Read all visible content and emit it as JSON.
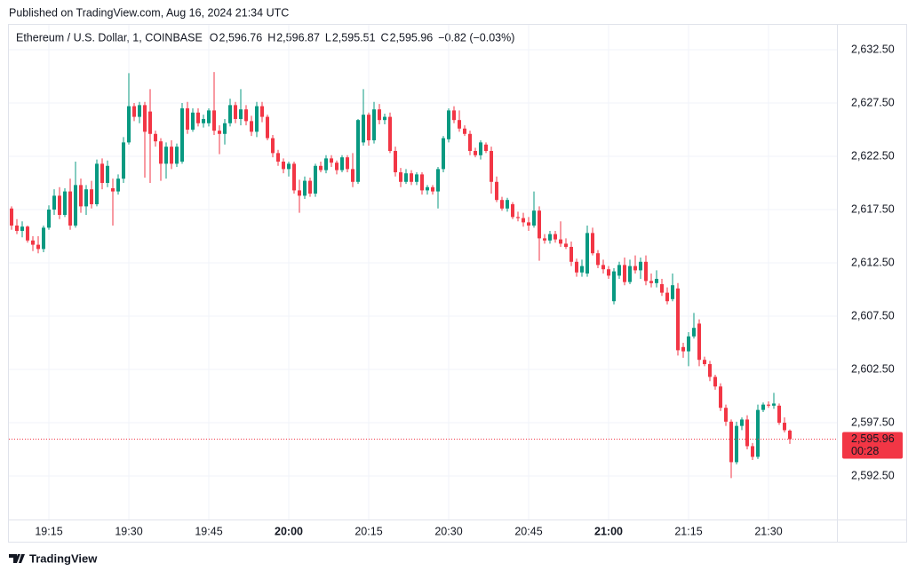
{
  "published": "Published on TradingView.com, Aug 16, 2024 21:34 UTC",
  "footer": "TradingView",
  "chart_data": {
    "type": "candlestick",
    "title": "Ethereum / U.S. Dollar, 1, COINBASE",
    "ohlc_legend": [
      {
        "label": "O",
        "value": "2,596.76"
      },
      {
        "label": "H",
        "value": "2,596.87"
      },
      {
        "label": "L",
        "value": "2,595.51"
      },
      {
        "label": "C",
        "value": "2,595.96"
      }
    ],
    "change": "−0.82 (−0.03%)",
    "up_color": "#089981",
    "down_color": "#f23645",
    "last_price": {
      "value": 2595.96,
      "label": "2,595.96"
    },
    "countdown": "00:28",
    "grid": true,
    "ylim": [
      2588.42,
      2634.83
    ],
    "yticks": [
      {
        "value": 2592.5,
        "label": "2,592.50"
      },
      {
        "value": 2597.5,
        "label": "2,597.50"
      },
      {
        "value": 2602.5,
        "label": "2,602.50"
      },
      {
        "value": 2607.5,
        "label": "2,607.50"
      },
      {
        "value": 2612.5,
        "label": "2,612.50"
      },
      {
        "value": 2617.5,
        "label": "2,617.50"
      },
      {
        "value": 2622.5,
        "label": "2,622.50"
      },
      {
        "value": 2627.5,
        "label": "2,627.50"
      },
      {
        "value": 2632.5,
        "label": "2,632.50"
      }
    ],
    "categories": [
      null,
      null,
      null,
      null,
      null,
      null,
      null,
      "19:15",
      null,
      null,
      null,
      null,
      null,
      null,
      null,
      null,
      null,
      null,
      null,
      null,
      null,
      null,
      "19:30",
      null,
      null,
      null,
      null,
      null,
      null,
      null,
      null,
      null,
      null,
      null,
      null,
      null,
      null,
      "19:45",
      null,
      null,
      null,
      null,
      null,
      null,
      null,
      null,
      null,
      null,
      null,
      null,
      null,
      null,
      "20:00",
      null,
      null,
      null,
      null,
      null,
      null,
      null,
      null,
      null,
      null,
      null,
      null,
      null,
      null,
      "20:15",
      null,
      null,
      null,
      null,
      null,
      null,
      null,
      null,
      null,
      null,
      null,
      null,
      null,
      null,
      "20:30",
      null,
      null,
      null,
      null,
      null,
      null,
      null,
      null,
      null,
      null,
      null,
      null,
      null,
      null,
      "20:45",
      null,
      null,
      null,
      null,
      null,
      null,
      null,
      null,
      null,
      null,
      null,
      null,
      null,
      null,
      "21:00",
      null,
      null,
      null,
      null,
      null,
      null,
      null,
      null,
      null,
      null,
      null,
      null,
      null,
      null,
      "21:15",
      null,
      null,
      null,
      null,
      null,
      null,
      null,
      null,
      null,
      null,
      null,
      null,
      null,
      null,
      "21:30",
      null,
      null,
      null,
      null
    ],
    "candles": [
      [
        2617.6,
        2617.8,
        2615.6,
        2616.0
      ],
      [
        2616.0,
        2616.6,
        2615.2,
        2615.5
      ],
      [
        2615.5,
        2616.4,
        2614.9,
        2615.9
      ],
      [
        2615.9,
        2616.0,
        2614.4,
        2614.6
      ],
      [
        2614.6,
        2615.0,
        2613.6,
        2614.2
      ],
      [
        2614.2,
        2615.0,
        2613.4,
        2613.8
      ],
      [
        2613.8,
        2616.0,
        2613.5,
        2615.8
      ],
      [
        2615.8,
        2617.9,
        2615.6,
        2617.5
      ],
      [
        2617.5,
        2619.4,
        2617.0,
        2618.8
      ],
      [
        2618.8,
        2619.6,
        2616.6,
        2617.0
      ],
      [
        2617.0,
        2619.5,
        2616.8,
        2619.2
      ],
      [
        2619.2,
        2620.4,
        2615.6,
        2616.0
      ],
      [
        2616.0,
        2622.0,
        2615.8,
        2619.8
      ],
      [
        2619.8,
        2620.4,
        2617.2,
        2617.8
      ],
      [
        2617.8,
        2619.8,
        2617.0,
        2619.4
      ],
      [
        2619.4,
        2620.2,
        2617.6,
        2618.0
      ],
      [
        2618.0,
        2622.2,
        2617.8,
        2621.8
      ],
      [
        2621.8,
        2622.3,
        2619.4,
        2620.0
      ],
      [
        2620.0,
        2622.1,
        2619.6,
        2621.6
      ],
      [
        2619.5,
        2620.4,
        2616.0,
        2619.2
      ],
      [
        2619.2,
        2620.8,
        2618.9,
        2620.4
      ],
      [
        2620.4,
        2624.3,
        2620.0,
        2623.8
      ],
      [
        2623.8,
        2630.3,
        2623.6,
        2627.2
      ],
      [
        2627.2,
        2627.5,
        2625.8,
        2626.2
      ],
      [
        2626.2,
        2627.6,
        2625.6,
        2627.3
      ],
      [
        2627.3,
        2627.6,
        2620.5,
        2624.8
      ],
      [
        2626.7,
        2628.8,
        2620.0,
        2624.6
      ],
      [
        2624.6,
        2624.9,
        2623.4,
        2623.9
      ],
      [
        2623.9,
        2624.2,
        2620.2,
        2621.8
      ],
      [
        2621.8,
        2623.8,
        2620.4,
        2623.4
      ],
      [
        2623.4,
        2624.0,
        2621.3,
        2621.8
      ],
      [
        2621.8,
        2623.7,
        2621.5,
        2623.4
      ],
      [
        2622.0,
        2627.5,
        2621.8,
        2627.0
      ],
      [
        2627.0,
        2627.6,
        2624.6,
        2625.0
      ],
      [
        2625.0,
        2627.0,
        2624.8,
        2626.6
      ],
      [
        2626.6,
        2627.0,
        2625.3,
        2625.6
      ],
      [
        2625.6,
        2626.4,
        2625.2,
        2626.0
      ],
      [
        2625.6,
        2627.0,
        2625.3,
        2626.8
      ],
      [
        2626.8,
        2630.4,
        2624.5,
        2624.9
      ],
      [
        2624.9,
        2625.4,
        2622.7,
        2624.6
      ],
      [
        2624.6,
        2626.0,
        2623.6,
        2625.6
      ],
      [
        2625.6,
        2627.9,
        2625.3,
        2627.3
      ],
      [
        2627.3,
        2627.6,
        2625.6,
        2626.0
      ],
      [
        2626.0,
        2628.8,
        2625.4,
        2626.9
      ],
      [
        2626.9,
        2627.3,
        2625.4,
        2625.8
      ],
      [
        2625.8,
        2626.3,
        2624.4,
        2624.8
      ],
      [
        2624.8,
        2627.6,
        2624.3,
        2627.2
      ],
      [
        2627.2,
        2627.6,
        2625.7,
        2626.2
      ],
      [
        2626.2,
        2626.4,
        2624.0,
        2624.2
      ],
      [
        2624.2,
        2624.5,
        2622.4,
        2622.8
      ],
      [
        2622.8,
        2623.1,
        2621.6,
        2622.0
      ],
      [
        2622.0,
        2622.3,
        2620.9,
        2621.3
      ],
      [
        2621.3,
        2622.0,
        2620.6,
        2621.8
      ],
      [
        2621.8,
        2622.0,
        2619.0,
        2619.3
      ],
      [
        2619.3,
        2620.3,
        2617.2,
        2618.8
      ],
      [
        2618.8,
        2620.6,
        2618.5,
        2620.2
      ],
      [
        2620.2,
        2620.5,
        2618.7,
        2619.0
      ],
      [
        2619.0,
        2621.8,
        2618.7,
        2621.6
      ],
      [
        2621.6,
        2622.0,
        2621.0,
        2621.2
      ],
      [
        2621.2,
        2622.6,
        2620.9,
        2622.3
      ],
      [
        2622.3,
        2622.6,
        2621.5,
        2621.9
      ],
      [
        2621.9,
        2622.1,
        2620.8,
        2621.2
      ],
      [
        2621.2,
        2622.6,
        2621.0,
        2622.4
      ],
      [
        2622.4,
        2622.6,
        2621.0,
        2621.3
      ],
      [
        2621.3,
        2622.8,
        2619.6,
        2620.1
      ],
      [
        2620.1,
        2626.0,
        2619.9,
        2625.9
      ],
      [
        2623.8,
        2628.8,
        2623.5,
        2626.4
      ],
      [
        2626.4,
        2626.6,
        2623.5,
        2624.0
      ],
      [
        2624.0,
        2627.6,
        2623.7,
        2626.9
      ],
      [
        2626.9,
        2627.4,
        2625.5,
        2625.9
      ],
      [
        2625.9,
        2626.5,
        2625.5,
        2626.2
      ],
      [
        2626.2,
        2626.6,
        2622.8,
        2623.0
      ],
      [
        2623.0,
        2623.4,
        2620.6,
        2621.0
      ],
      [
        2621.0,
        2621.4,
        2619.6,
        2620.1
      ],
      [
        2620.1,
        2621.3,
        2619.9,
        2620.9
      ],
      [
        2620.9,
        2621.2,
        2619.8,
        2620.1
      ],
      [
        2620.1,
        2621.0,
        2619.8,
        2620.8
      ],
      [
        2620.8,
        2621.0,
        2618.9,
        2619.3
      ],
      [
        2619.3,
        2619.8,
        2618.9,
        2619.6
      ],
      [
        2619.6,
        2619.8,
        2618.9,
        2619.2
      ],
      [
        2619.2,
        2621.5,
        2617.6,
        2621.3
      ],
      [
        2621.3,
        2624.4,
        2621.0,
        2624.2
      ],
      [
        2624.1,
        2627.0,
        2623.8,
        2626.8
      ],
      [
        2626.8,
        2627.2,
        2625.6,
        2625.9
      ],
      [
        2625.9,
        2626.8,
        2624.8,
        2625.1
      ],
      [
        2625.1,
        2625.4,
        2624.4,
        2624.6
      ],
      [
        2624.6,
        2624.9,
        2622.6,
        2623.0
      ],
      [
        2623.0,
        2623.3,
        2622.4,
        2622.6
      ],
      [
        2622.6,
        2624.0,
        2622.2,
        2623.8
      ],
      [
        2623.6,
        2623.8,
        2622.8,
        2623.0
      ],
      [
        2623.0,
        2623.4,
        2619.0,
        2620.1
      ],
      [
        2620.1,
        2620.6,
        2618.2,
        2618.4
      ],
      [
        2618.4,
        2618.7,
        2617.4,
        2617.6
      ],
      [
        2617.6,
        2618.6,
        2617.3,
        2618.4
      ],
      [
        2618.0,
        2618.2,
        2616.6,
        2616.8
      ],
      [
        2616.8,
        2617.3,
        2616.4,
        2616.7
      ],
      [
        2616.7,
        2617.2,
        2615.9,
        2616.3
      ],
      [
        2616.3,
        2616.8,
        2615.5,
        2616.0
      ],
      [
        2616.0,
        2619.2,
        2615.8,
        2617.4
      ],
      [
        2617.4,
        2617.8,
        2612.7,
        2614.8
      ],
      [
        2614.8,
        2615.2,
        2614.3,
        2614.6
      ],
      [
        2614.6,
        2615.5,
        2614.3,
        2615.2
      ],
      [
        2615.2,
        2615.5,
        2614.4,
        2614.7
      ],
      [
        2614.7,
        2616.4,
        2614.0,
        2614.3
      ],
      [
        2614.3,
        2614.8,
        2613.8,
        2614.0
      ],
      [
        2614.0,
        2614.5,
        2612.2,
        2612.6
      ],
      [
        2612.6,
        2612.9,
        2611.2,
        2611.6
      ],
      [
        2611.6,
        2612.8,
        2611.2,
        2612.2
      ],
      [
        2611.5,
        2616.0,
        2611.2,
        2615.3
      ],
      [
        2615.3,
        2615.8,
        2613.2,
        2613.4
      ],
      [
        2613.4,
        2613.7,
        2612.0,
        2612.3
      ],
      [
        2612.3,
        2612.8,
        2611.5,
        2611.9
      ],
      [
        2611.9,
        2612.2,
        2611.0,
        2611.3
      ],
      [
        2608.9,
        2612.0,
        2608.6,
        2611.7
      ],
      [
        2611.3,
        2612.6,
        2611.0,
        2612.3
      ],
      [
        2612.3,
        2613.0,
        2610.4,
        2610.7
      ],
      [
        2610.7,
        2612.8,
        2610.5,
        2612.2
      ],
      [
        2612.2,
        2613.2,
        2611.5,
        2611.8
      ],
      [
        2611.8,
        2613.0,
        2611.0,
        2612.6
      ],
      [
        2612.6,
        2613.2,
        2610.4,
        2610.8
      ],
      [
        2610.8,
        2611.5,
        2610.2,
        2610.6
      ],
      [
        2610.6,
        2611.8,
        2610.2,
        2611.0
      ],
      [
        2610.5,
        2611.0,
        2609.4,
        2609.7
      ],
      [
        2609.7,
        2610.2,
        2608.6,
        2608.9
      ],
      [
        2609.1,
        2611.5,
        2608.9,
        2610.4
      ],
      [
        2610.1,
        2610.6,
        2603.8,
        2604.3
      ],
      [
        2604.6,
        2605.0,
        2603.6,
        2604.2
      ],
      [
        2604.2,
        2606.0,
        2602.8,
        2605.6
      ],
      [
        2605.6,
        2607.8,
        2605.4,
        2606.4
      ],
      [
        2606.8,
        2607.2,
        2602.8,
        2603.4
      ],
      [
        2603.4,
        2603.7,
        2602.8,
        2603.0
      ],
      [
        2603.0,
        2603.3,
        2601.4,
        2601.8
      ],
      [
        2601.8,
        2602.0,
        2600.6,
        2600.9
      ],
      [
        2600.9,
        2601.2,
        2598.6,
        2598.9
      ],
      [
        2598.9,
        2599.2,
        2597.2,
        2597.6
      ],
      [
        2597.6,
        2597.8,
        2592.3,
        2593.8
      ],
      [
        2593.8,
        2597.6,
        2593.6,
        2597.2
      ],
      [
        2597.2,
        2598.0,
        2596.8,
        2597.8
      ],
      [
        2597.8,
        2598.2,
        2595.0,
        2595.3
      ],
      [
        2595.3,
        2595.6,
        2594.0,
        2594.3
      ],
      [
        2594.3,
        2599.2,
        2594.1,
        2598.7
      ],
      [
        2598.7,
        2599.4,
        2598.5,
        2599.2
      ],
      [
        2599.2,
        2599.5,
        2598.9,
        2599.1
      ],
      [
        2599.1,
        2600.3,
        2598.8,
        2599.3
      ],
      [
        2599.1,
        2599.3,
        2597.3,
        2597.5
      ],
      [
        2597.5,
        2598.0,
        2596.6,
        2596.8
      ],
      [
        2596.76,
        2596.87,
        2595.51,
        2595.96
      ]
    ]
  }
}
